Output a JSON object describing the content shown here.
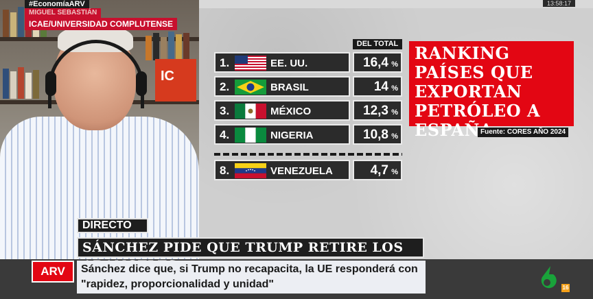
{
  "overlay": {
    "hashtag": "#EconomíaARV",
    "guest_name": "MIGUEL SEBASTIÁN",
    "guest_role": "ICAE/UNIVERSIDAD COMPLUTENSE",
    "clock": "13:58:17",
    "poster_text": "IC"
  },
  "ranking": {
    "column_header": "DEL TOTAL",
    "title": "RANKING PAÍSES QUE EXPORTAN PETRÓLEO A ESPAÑA",
    "source": "Fuente: CORES AÑO 2024",
    "percent_sign": "%",
    "rows": [
      {
        "rank": "1.",
        "country": "EE. UU.",
        "value": "16,4",
        "flag": "usa-flag-icon"
      },
      {
        "rank": "2.",
        "country": "BRASIL",
        "value": "14",
        "flag": "brazil-flag-icon"
      },
      {
        "rank": "3.",
        "country": "MÉXICO",
        "value": "12,3",
        "flag": "mexico-flag-icon"
      },
      {
        "rank": "4.",
        "country": "NIGERIA",
        "value": "10,8",
        "flag": "nigeria-flag-icon"
      },
      {
        "rank": "8.",
        "country": "VENEZUELA",
        "value": "4,7",
        "flag": "venezuela-flag-icon"
      }
    ]
  },
  "lower_third": {
    "live_label": "DIRECTO",
    "headline": "SÁNCHEZ PIDE QUE TRUMP RETIRE LOS ARANCELES",
    "program_logo": "ARV",
    "subline": "Sánchez dice que, si Trump no recapacita, la UE responderá con \"rapidez, proporcionalidad y unidad\"",
    "channel_logo": "laSexta-6-icon",
    "age_rating": "16"
  },
  "colors": {
    "brand_red": "#e30613",
    "panel_dark": "#2b2b2b",
    "age_badge": "#f4a11b"
  }
}
